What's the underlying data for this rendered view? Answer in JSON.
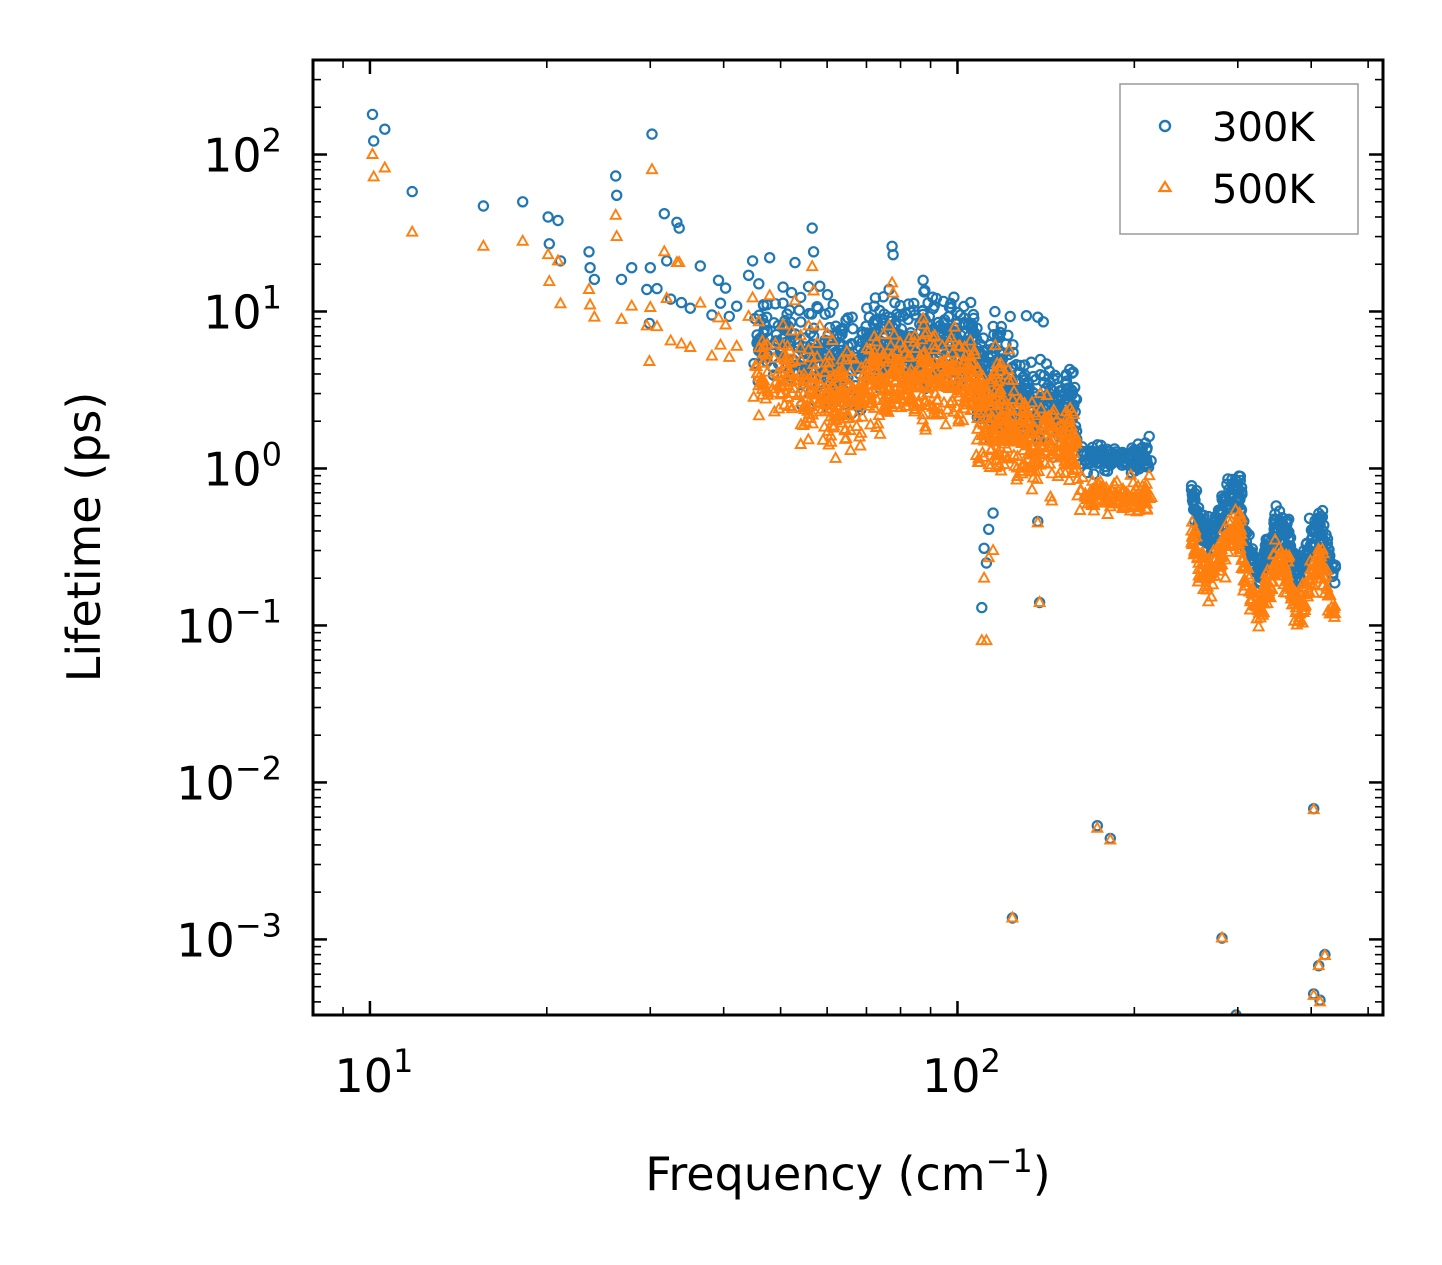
{
  "chart_data": {
    "type": "scatter",
    "xscale": "log",
    "yscale": "log",
    "xlabel": "Frequency (cm",
    "xlabel_sup": "−1",
    "xlabel_close": ")",
    "ylabel": "Lifetime (ps)",
    "xlim": [
      8,
      530
    ],
    "ylim": [
      0.00033,
      400
    ],
    "xticks": [
      {
        "base": "10",
        "exp": "1",
        "value": 10
      },
      {
        "base": "10",
        "exp": "2",
        "value": 100
      }
    ],
    "yticks": [
      {
        "base": "10",
        "exp": "2",
        "value": 100
      },
      {
        "base": "10",
        "exp": "1",
        "value": 10
      },
      {
        "base": "10",
        "exp": "0",
        "value": 1
      },
      {
        "base": "10",
        "exp": "−1",
        "value": 0.1
      },
      {
        "base": "10",
        "exp": "−2",
        "value": 0.01
      },
      {
        "base": "10",
        "exp": "−3",
        "value": 0.001
      }
    ],
    "legend_position": "top-right",
    "series": [
      {
        "name": "300K",
        "color": "#1f77b4",
        "marker": "circle",
        "points": [
          [
            10.1,
            180
          ],
          [
            10.15,
            122
          ],
          [
            10.6,
            145
          ],
          [
            11.8,
            58
          ],
          [
            15.6,
            47
          ],
          [
            18.2,
            50
          ],
          [
            20.1,
            40
          ],
          [
            20.2,
            27
          ],
          [
            20.9,
            38
          ],
          [
            21.1,
            21
          ],
          [
            23.6,
            24
          ],
          [
            23.7,
            19
          ],
          [
            24.1,
            16
          ],
          [
            26.2,
            73
          ],
          [
            26.3,
            55
          ],
          [
            26.8,
            16
          ],
          [
            27.9,
            19
          ],
          [
            29.6,
            13.8
          ],
          [
            29.9,
            8.4
          ],
          [
            30.0,
            19
          ],
          [
            30.2,
            135
          ],
          [
            30.8,
            14
          ],
          [
            31.7,
            42
          ],
          [
            32.0,
            21
          ],
          [
            32.5,
            12
          ],
          [
            33.3,
            37
          ],
          [
            33.6,
            34
          ],
          [
            33.9,
            11.4
          ],
          [
            35.1,
            10.5
          ],
          [
            36.5,
            19.5
          ],
          [
            38.2,
            9.5
          ],
          [
            39.2,
            15.8
          ],
          [
            39.5,
            11.3
          ],
          [
            40.3,
            14.1
          ],
          [
            40.9,
            9.3
          ],
          [
            42.1,
            10.8
          ],
          [
            44.1,
            17
          ],
          [
            44.8,
            21
          ],
          [
            45.9,
            15
          ],
          [
            46.8,
            10.9
          ],
          [
            47.9,
            22
          ],
          [
            49.0,
            11.2
          ],
          [
            50.5,
            14.3
          ],
          [
            51.8,
            10.2
          ],
          [
            52.2,
            13.2
          ],
          [
            52.9,
            20.5
          ],
          [
            54.1,
            12.3
          ],
          [
            55.8,
            14.4
          ],
          [
            56.6,
            34
          ],
          [
            56.9,
            24
          ],
          [
            58.3,
            14.5
          ],
          [
            60.1,
            12.8
          ],
          [
            64.6,
            8.8
          ],
          [
            66.2,
            9.2
          ],
          [
            70.1,
            10.5
          ],
          [
            72.3,
            7.4
          ],
          [
            74.8,
            12.4
          ],
          [
            76.5,
            13.8
          ],
          [
            77.4,
            26
          ],
          [
            77.7,
            23
          ],
          [
            79.9,
            10.9
          ],
          [
            82.4,
            8.9
          ],
          [
            87.4,
            15.8
          ],
          [
            112.0,
            0.25
          ],
          [
            110.0,
            0.13
          ],
          [
            111.0,
            0.31
          ],
          [
            113.0,
            0.41
          ],
          [
            115.0,
            0.52
          ],
          [
            131.0,
            9.4
          ],
          [
            137.0,
            9.2
          ],
          [
            140.0,
            8.6
          ],
          [
            137.0,
            0.46
          ],
          [
            138.0,
            0.14
          ],
          [
            171.0,
            1.12
          ],
          [
            182.0,
            1.05
          ],
          [
            193.0,
            1.2
          ],
          [
            203.0,
            1.43
          ],
          [
            212.0,
            1.6
          ],
          [
            124.0,
            0.00137
          ],
          [
            173.0,
            0.0053
          ],
          [
            182.0,
            0.0044
          ],
          [
            282.0,
            0.00102
          ],
          [
            298.0,
            0.00033
          ],
          [
            404.0,
            0.0068
          ],
          [
            404.0,
            0.00045
          ],
          [
            412.0,
            0.00068
          ],
          [
            414.0,
            0.00041
          ],
          [
            422.0,
            0.0008
          ]
        ]
      },
      {
        "name": "500K",
        "color": "#ff7f0e",
        "marker": "triangle",
        "points": [
          [
            10.1,
            100
          ],
          [
            10.15,
            72
          ],
          [
            10.6,
            82
          ],
          [
            11.8,
            32
          ],
          [
            15.6,
            26
          ],
          [
            18.2,
            28
          ],
          [
            20.1,
            23
          ],
          [
            20.2,
            15.5
          ],
          [
            20.9,
            21
          ],
          [
            21.1,
            11.2
          ],
          [
            23.6,
            13.8
          ],
          [
            23.7,
            11
          ],
          [
            24.1,
            9.2
          ],
          [
            26.2,
            41
          ],
          [
            26.3,
            30
          ],
          [
            26.8,
            8.9
          ],
          [
            27.9,
            10.8
          ],
          [
            29.6,
            8.1
          ],
          [
            29.9,
            4.8
          ],
          [
            30.0,
            10.6
          ],
          [
            30.2,
            80
          ],
          [
            30.8,
            8.0
          ],
          [
            31.7,
            24
          ],
          [
            32.0,
            12.1
          ],
          [
            32.5,
            6.5
          ],
          [
            33.3,
            20.5
          ],
          [
            33.6,
            20.5
          ],
          [
            33.9,
            6.2
          ],
          [
            35.1,
            5.9
          ],
          [
            36.5,
            11.3
          ],
          [
            38.2,
            5.2
          ],
          [
            39.2,
            9.1
          ],
          [
            39.5,
            6.1
          ],
          [
            40.3,
            8.2
          ],
          [
            40.9,
            5.1
          ],
          [
            42.1,
            6.0
          ],
          [
            44.1,
            9.3
          ],
          [
            44.8,
            12.2
          ],
          [
            45.9,
            8.6
          ],
          [
            46.8,
            6.0
          ],
          [
            47.9,
            12.6
          ],
          [
            49.0,
            6.2
          ],
          [
            50.5,
            8.2
          ],
          [
            51.8,
            5.6
          ],
          [
            52.2,
            7.5
          ],
          [
            52.9,
            11.7
          ],
          [
            54.1,
            7.0
          ],
          [
            55.8,
            8.1
          ],
          [
            56.6,
            19.3
          ],
          [
            56.9,
            13.5
          ],
          [
            58.3,
            8.1
          ],
          [
            60.1,
            7.2
          ],
          [
            64.6,
            4.9
          ],
          [
            66.2,
            5.1
          ],
          [
            70.1,
            5.8
          ],
          [
            72.3,
            4.2
          ],
          [
            74.8,
            7.1
          ],
          [
            76.5,
            8.1
          ],
          [
            77.4,
            15.2
          ],
          [
            77.7,
            13.1
          ],
          [
            79.9,
            6.3
          ],
          [
            82.4,
            5.1
          ],
          [
            87.4,
            9.0
          ],
          [
            112.0,
            0.08
          ],
          [
            110.0,
            0.08
          ],
          [
            111.0,
            0.2
          ],
          [
            113.0,
            0.27
          ],
          [
            115.0,
            0.3
          ],
          [
            137.0,
            0.45
          ],
          [
            138.0,
            0.14
          ],
          [
            171.0,
            0.62
          ],
          [
            182.0,
            0.57
          ],
          [
            193.0,
            0.61
          ],
          [
            203.0,
            0.77
          ],
          [
            212.0,
            0.9
          ],
          [
            124.0,
            0.00137
          ],
          [
            173.0,
            0.0051
          ],
          [
            182.0,
            0.0043
          ],
          [
            282.0,
            0.00102
          ],
          [
            298.0,
            0.00032
          ],
          [
            404.0,
            0.0067
          ],
          [
            404.0,
            0.00044
          ],
          [
            412.0,
            0.00068
          ],
          [
            414.0,
            0.0004
          ],
          [
            422.0,
            0.00079
          ]
        ]
      }
    ]
  }
}
